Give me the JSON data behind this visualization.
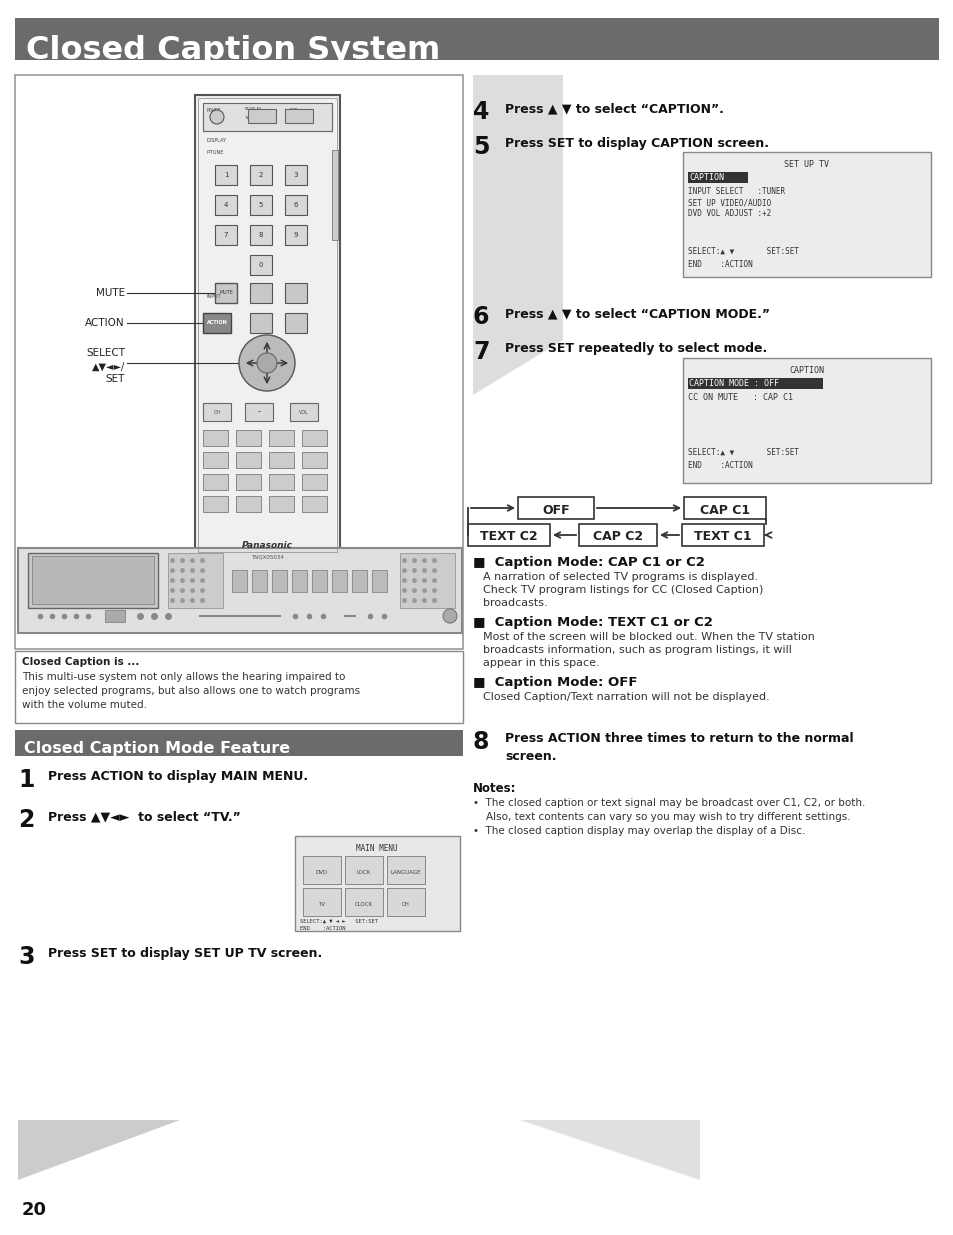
{
  "title": "Closed Caption System",
  "title_bg_color": "#6b6b6b",
  "title_text_color": "#ffffff",
  "page_bg_color": "#ffffff",
  "page_number": "20",
  "section2_title": "Closed Caption Mode Feature",
  "section2_bg_color": "#6b6b6b",
  "section2_text_color": "#ffffff",
  "step1": "Press ACTION to display MAIN MENU.",
  "step2": "Press ▲▼◄►  to select “TV.”",
  "step3": "Press SET to display SET UP TV screen.",
  "step4": "Press ▲ ▼ to select “CAPTION”.",
  "step5": "Press SET to display CAPTION screen.",
  "step6": "Press ▲ ▼ to select “CAPTION MODE.”",
  "step7": "Press SET repeatedly to select mode.",
  "step8_line1": "Press ACTION three times to return to the normal",
  "step8_line2": "screen.",
  "cap_mode_cap": "Caption Mode: CAP C1 or C2",
  "cap_mode_cap_text1": "A narration of selected TV programs is displayed.",
  "cap_mode_cap_text2": "Check TV program listings for CC (Closed Caption)",
  "cap_mode_cap_text3": "broadcasts.",
  "cap_mode_text": "Caption Mode: TEXT C1 or C2",
  "cap_mode_text_body1": "Most of the screen will be blocked out. When the TV station",
  "cap_mode_text_body2": "broadcasts information, such as program listings, it will",
  "cap_mode_text_body3": "appear in this space.",
  "cap_mode_off": "Caption Mode: OFF",
  "cap_mode_off_body": "Closed Caption/Text narration will not be displayed.",
  "note_title": "Notes:",
  "note1": "•  The closed caption or text signal may be broadcast over C1, C2, or both.",
  "note1b": "    Also, text contents can vary so you may wish to try different settings.",
  "note2": "•  The closed caption display may overlap the display of a Disc.",
  "cc_box_title": "Closed Caption is ...",
  "cc_box_body": "This multi-use system not only allows the hearing impaired to\nenjoy selected programs, but also allows one to watch programs\nwith the volume muted.",
  "screen1_title": "SET UP TV",
  "screen2_title": "CAPTION",
  "menu_title": "MAIN MENU",
  "left_panel_border": "#888888",
  "gray_bg_color": "#d0d0d0"
}
